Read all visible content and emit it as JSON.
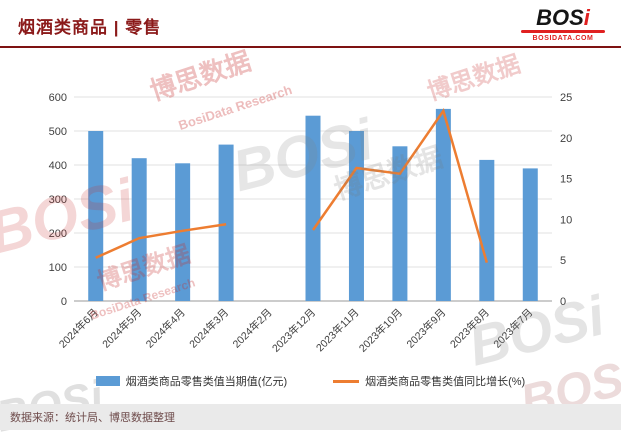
{
  "header": {
    "title": "烟酒类商品 | 零售",
    "logo": {
      "main": "BOS",
      "i": "i",
      "sub": "BOSIDATA.COM"
    }
  },
  "chart_data": {
    "type": "bar",
    "subtype": "combo bar+line with dual y-axes",
    "title": "烟酒类商品 | 零售",
    "categories": [
      "2024年6月",
      "2024年5月",
      "2024年4月",
      "2024年3月",
      "2024年2月",
      "2023年12月",
      "2023年11月",
      "2023年10月",
      "2023年9月",
      "2023年8月",
      "2023年7月"
    ],
    "series": [
      {
        "name": "烟酒类商品零售类值当期值(亿元)",
        "type": "bar",
        "axis": "left",
        "color": "#5B9BD5",
        "values": [
          500,
          420,
          405,
          460,
          null,
          545,
          500,
          455,
          565,
          415,
          390
        ]
      },
      {
        "name": "烟酒类商品零售类值同比增长(%)",
        "type": "line",
        "axis": "right",
        "color": "#ED7D31",
        "values": [
          5.3,
          7.7,
          8.6,
          9.4,
          null,
          8.7,
          16.3,
          15.6,
          23.3,
          4.7,
          null
        ]
      }
    ],
    "left_axis": {
      "min": 0,
      "max": 600,
      "step": 100,
      "ticks": [
        "0",
        "100",
        "200",
        "300",
        "400",
        "500",
        "600"
      ]
    },
    "right_axis": {
      "min": 0,
      "max": 25,
      "step": 5,
      "ticks": [
        "0",
        "5",
        "10",
        "15",
        "20",
        "25"
      ]
    },
    "grid": true,
    "legend_position": "bottom"
  },
  "footer": {
    "source": "数据来源：统计局、博思数据整理"
  },
  "watermark": {
    "brand": "BOSi",
    "cn": "博思数据",
    "en": "BosiData Research"
  },
  "colors": {
    "bar": "#5B9BD5",
    "line": "#ED7D31",
    "title": "#8B1A1A",
    "divider": "#7E1212",
    "logo_red": "#E02020",
    "footer_bg": "#EAEAEA"
  }
}
